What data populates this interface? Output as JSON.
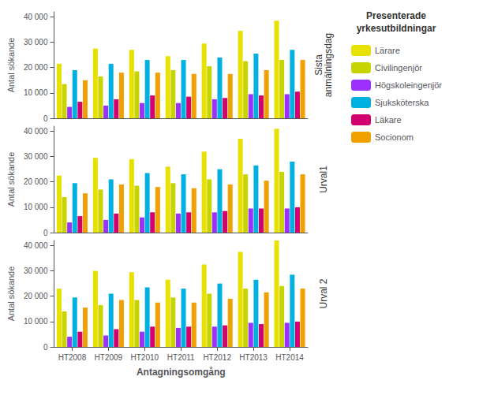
{
  "chart_data": [
    {
      "type": "bar",
      "title": "Sista\nanmälningsdag",
      "ylabel": "Antal sökande",
      "legend": "right",
      "legend_title": "Presenterade\nyrkesutbildningar",
      "categories": [
        "HT2008",
        "HT2009",
        "HT2010",
        "HT2011",
        "HT2012",
        "HT2013",
        "HT2014"
      ],
      "series": [
        {
          "name": "Lärare",
          "color": "#E8E000",
          "values": [
            21500,
            27500,
            27000,
            24500,
            29500,
            34500,
            38500
          ]
        },
        {
          "name": "Civilingenjör",
          "color": "#C8D400",
          "values": [
            13500,
            16500,
            18500,
            19000,
            20500,
            22500,
            23000
          ]
        },
        {
          "name": "Högskoleingenjör",
          "color": "#9B30FF",
          "values": [
            4500,
            5000,
            6000,
            6000,
            7500,
            9500,
            9500
          ]
        },
        {
          "name": "Sjuksköterska",
          "color": "#00B0E0",
          "values": [
            19000,
            21500,
            23000,
            23000,
            24000,
            25500,
            27000
          ]
        },
        {
          "name": "Läkare",
          "color": "#D0006F",
          "values": [
            6500,
            7500,
            9000,
            8500,
            8000,
            9000,
            10500
          ]
        },
        {
          "name": "Socionom",
          "color": "#F0A000",
          "values": [
            15000,
            18000,
            18000,
            17500,
            17500,
            19000,
            23000
          ]
        }
      ],
      "ylim": [
        0,
        42000
      ],
      "yticks": [
        0,
        {
          "value": 10000,
          "label": "10 000"
        },
        {
          "value": 20000,
          "label": "20 000"
        },
        {
          "value": 30000,
          "label": "30 000"
        },
        {
          "value": 40000,
          "label": "40 000"
        }
      ],
      "grid": false,
      "tick_labels": "y"
    },
    {
      "type": "bar",
      "title": "Urval1",
      "ylabel": "Antal sökande",
      "categories": [
        "HT2008",
        "HT2009",
        "HT2010",
        "HT2011",
        "HT2012",
        "HT2013",
        "HT2014"
      ],
      "series": [
        {
          "name": "Lärare",
          "color": "#E8E000",
          "values": [
            22500,
            29500,
            29000,
            26000,
            32000,
            37000,
            41000
          ]
        },
        {
          "name": "Civilingenjör",
          "color": "#C8D400",
          "values": [
            14000,
            17000,
            18500,
            19500,
            21000,
            23000,
            24000
          ]
        },
        {
          "name": "Högskoleingenjör",
          "color": "#9B30FF",
          "values": [
            4000,
            5000,
            6000,
            7500,
            8000,
            9500,
            9500
          ]
        },
        {
          "name": "Sjuksköterska",
          "color": "#00B0E0",
          "values": [
            19500,
            21000,
            23500,
            23000,
            25000,
            26500,
            28000
          ]
        },
        {
          "name": "Läkare",
          "color": "#D0006F",
          "values": [
            6500,
            7500,
            8000,
            8000,
            8500,
            9500,
            10000
          ]
        },
        {
          "name": "Socionom",
          "color": "#F0A000",
          "values": [
            15500,
            19000,
            18000,
            17500,
            19000,
            20500,
            23000
          ]
        }
      ],
      "ylim": [
        0,
        42000
      ],
      "yticks": [
        0,
        {
          "value": 10000,
          "label": "10 000"
        },
        {
          "value": 20000,
          "label": "20 000"
        },
        {
          "value": 30000,
          "label": "30 000"
        },
        {
          "value": 40000,
          "label": "40 000"
        }
      ],
      "grid": false,
      "tick_labels": "y"
    },
    {
      "type": "bar",
      "title": "Urval 2",
      "ylabel": "Antal sökande",
      "xlabel": "Antagningsomgång",
      "categories": [
        "HT2008",
        "HT2009",
        "HT2010",
        "HT2011",
        "HT2012",
        "HT2013",
        "HT2014"
      ],
      "series": [
        {
          "name": "Lärare",
          "color": "#E8E000",
          "values": [
            23000,
            30000,
            29500,
            26500,
            32500,
            37500,
            42000
          ]
        },
        {
          "name": "Civilingenjör",
          "color": "#C8D400",
          "values": [
            14000,
            16500,
            18500,
            19500,
            21000,
            23000,
            24000
          ]
        },
        {
          "name": "Högskoleingenjör",
          "color": "#9B30FF",
          "values": [
            4000,
            4500,
            6000,
            7500,
            8000,
            9500,
            9500
          ]
        },
        {
          "name": "Sjuksköterska",
          "color": "#00B0E0",
          "values": [
            19500,
            21000,
            23500,
            23000,
            25000,
            26500,
            28500
          ]
        },
        {
          "name": "Läkare",
          "color": "#D0006F",
          "values": [
            6000,
            7000,
            8000,
            8000,
            8500,
            9000,
            10000
          ]
        },
        {
          "name": "Socionom",
          "color": "#F0A000",
          "values": [
            15500,
            18500,
            17500,
            17500,
            19000,
            21500,
            23000
          ]
        }
      ],
      "ylim": [
        0,
        42000
      ],
      "yticks": [
        0,
        {
          "value": 10000,
          "label": "10 000"
        },
        {
          "value": 20000,
          "label": "20 000"
        },
        {
          "value": 30000,
          "label": "30 000"
        },
        {
          "value": 40000,
          "label": "40 000"
        }
      ],
      "grid": false
    }
  ]
}
